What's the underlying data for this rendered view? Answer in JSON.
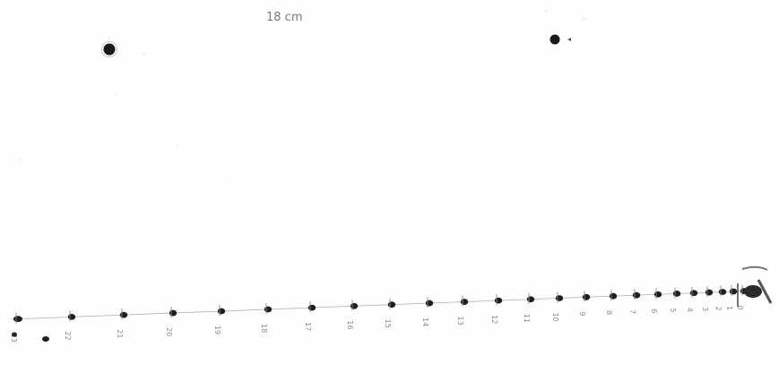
{
  "header": {
    "length_note": "18 cm"
  },
  "colors": {
    "paper": "#fefefe",
    "ink": "#1a1a1a",
    "pencil": "#8c8c8c"
  },
  "reference_marks": [
    {
      "id": "left-reference-dot"
    },
    {
      "id": "right-reference-dot"
    }
  ],
  "scale": {
    "labels": [
      "23",
      "22",
      "21",
      "20",
      "19",
      "18",
      "17",
      "16",
      "15",
      "14",
      "13",
      "12",
      "11",
      "10",
      "9",
      "8",
      "7",
      "6",
      "5",
      "4",
      "3",
      "2",
      "1",
      "0"
    ]
  }
}
